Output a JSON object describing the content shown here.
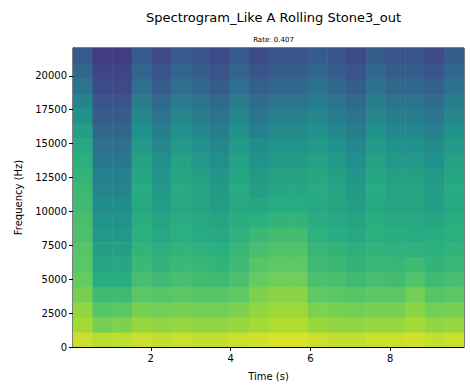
{
  "chart_data": {
    "type": "heatmap",
    "title": "Spectrogram_Like A Rolling Stone3_out",
    "subtitle": "Rate: 0.407",
    "x_label": "Time (s)",
    "y_label": "Frequency (Hz)",
    "xlim": [
      0.05,
      9.85
    ],
    "xticks": [
      2,
      4,
      6,
      8
    ],
    "ylim": [
      0,
      22050
    ],
    "yticks": [
      0,
      2500,
      5000,
      7500,
      10000,
      12500,
      15000,
      17500,
      20000
    ],
    "grid": false,
    "x_bins": [
      0.05,
      0.54,
      1.03,
      1.52,
      2.01,
      2.5,
      2.99,
      3.48,
      3.97,
      4.46,
      4.95,
      5.44,
      5.93,
      6.42,
      6.91,
      7.4,
      7.89,
      8.38,
      8.87,
      9.36,
      9.85
    ],
    "y_bins": [
      0,
      1102.5,
      2205,
      3307.5,
      4410,
      5512.5,
      6615,
      7717.5,
      8820,
      9922.5,
      11025,
      12127.5,
      13230,
      14332.5,
      15435,
      16537.5,
      17640,
      18742.5,
      19845,
      20947.5,
      22050
    ],
    "zlim": [
      0,
      10
    ],
    "cells": [
      [
        9.2,
        8.9,
        9.0,
        9.2,
        9.1,
        9.2,
        9.1,
        9.1,
        9.2,
        9.3,
        9.4,
        9.4,
        9.2,
        9.1,
        9.1,
        9.2,
        9.2,
        9.3,
        9.1,
        9.2
      ],
      [
        8.6,
        7.9,
        8.0,
        8.4,
        8.3,
        8.4,
        8.3,
        8.3,
        8.4,
        8.6,
        8.8,
        8.8,
        8.4,
        8.3,
        8.3,
        8.4,
        8.4,
        8.6,
        8.3,
        8.4
      ],
      [
        8.3,
        7.3,
        7.4,
        7.9,
        7.8,
        7.9,
        7.8,
        7.8,
        8.0,
        8.3,
        8.5,
        8.5,
        8.0,
        7.9,
        7.8,
        7.9,
        7.9,
        8.2,
        7.8,
        7.9
      ],
      [
        7.9,
        6.8,
        6.8,
        7.4,
        7.3,
        7.4,
        7.3,
        7.3,
        7.5,
        8.0,
        8.2,
        8.2,
        7.5,
        7.4,
        7.3,
        7.4,
        7.4,
        7.8,
        7.3,
        7.4
      ],
      [
        7.6,
        6.2,
        6.2,
        7.0,
        6.8,
        7.0,
        6.9,
        6.8,
        7.1,
        7.6,
        7.8,
        7.8,
        7.1,
        7.0,
        6.8,
        7.0,
        6.9,
        7.2,
        6.8,
        7.0
      ],
      [
        7.4,
        5.9,
        5.9,
        6.7,
        6.5,
        6.7,
        6.6,
        6.5,
        6.8,
        7.3,
        7.5,
        7.5,
        6.8,
        6.7,
        6.5,
        6.7,
        6.6,
        6.8,
        6.5,
        6.7
      ],
      [
        7.3,
        5.6,
        5.6,
        6.5,
        6.3,
        6.5,
        6.4,
        6.3,
        6.6,
        7.0,
        7.2,
        7.2,
        6.6,
        6.5,
        6.3,
        6.5,
        6.4,
        6.4,
        6.3,
        6.5
      ],
      [
        7.1,
        5.3,
        5.3,
        6.3,
        6.0,
        6.3,
        6.1,
        6.0,
        6.4,
        6.7,
        6.9,
        6.9,
        6.4,
        6.2,
        6.0,
        6.3,
        6.2,
        6.1,
        6.1,
        6.3
      ],
      [
        7.0,
        5.1,
        5.1,
        6.2,
        5.8,
        6.2,
        6.0,
        5.8,
        6.2,
        6.3,
        6.5,
        6.5,
        6.2,
        6.0,
        5.8,
        6.2,
        6.0,
        6.0,
        5.9,
        6.2
      ],
      [
        6.8,
        4.8,
        4.8,
        6.0,
        5.5,
        6.0,
        5.8,
        5.5,
        6.0,
        5.9,
        6.1,
        6.1,
        6.0,
        5.8,
        5.5,
        6.0,
        5.8,
        5.8,
        5.6,
        6.0
      ],
      [
        6.7,
        4.5,
        4.5,
        6.1,
        5.4,
        6.1,
        5.8,
        5.4,
        6.1,
        5.6,
        5.9,
        5.9,
        6.1,
        5.8,
        5.4,
        6.1,
        5.8,
        5.8,
        5.5,
        6.1
      ],
      [
        6.5,
        4.3,
        4.3,
        5.9,
        5.2,
        5.9,
        5.6,
        5.2,
        5.9,
        5.4,
        5.7,
        5.7,
        5.9,
        5.6,
        5.2,
        5.9,
        5.6,
        5.6,
        5.3,
        5.9
      ],
      [
        6.3,
        4.0,
        4.0,
        5.7,
        4.9,
        5.7,
        5.3,
        4.9,
        5.7,
        5.1,
        5.4,
        5.4,
        5.7,
        5.3,
        4.9,
        5.7,
        5.3,
        5.3,
        5.0,
        5.7
      ],
      [
        6.0,
        3.7,
        3.7,
        5.4,
        4.6,
        5.4,
        5.0,
        4.6,
        5.4,
        4.8,
        5.1,
        5.1,
        5.4,
        5.0,
        4.6,
        5.4,
        5.0,
        5.0,
        4.7,
        5.4
      ],
      [
        5.6,
        3.3,
        3.3,
        5.0,
        4.2,
        5.0,
        4.6,
        4.2,
        5.0,
        4.3,
        4.7,
        4.7,
        5.0,
        4.6,
        4.2,
        5.0,
        4.6,
        4.6,
        4.3,
        5.0
      ],
      [
        5.0,
        2.9,
        2.9,
        4.6,
        3.8,
        4.6,
        4.2,
        3.8,
        4.6,
        3.9,
        4.3,
        4.3,
        4.6,
        4.2,
        3.8,
        4.6,
        4.2,
        4.2,
        3.9,
        4.6
      ],
      [
        4.4,
        2.6,
        2.6,
        4.1,
        3.4,
        4.1,
        3.8,
        3.4,
        4.1,
        3.5,
        3.8,
        3.8,
        4.2,
        3.8,
        3.4,
        4.2,
        3.8,
        3.8,
        3.5,
        4.2
      ],
      [
        3.8,
        2.2,
        2.2,
        3.6,
        2.9,
        3.6,
        3.3,
        2.9,
        3.6,
        3.0,
        3.3,
        3.3,
        3.7,
        3.3,
        2.9,
        3.7,
        3.3,
        3.3,
        3.0,
        3.7
      ],
      [
        3.3,
        2.0,
        2.0,
        3.2,
        2.5,
        3.2,
        2.9,
        2.5,
        3.2,
        2.6,
        2.9,
        2.9,
        3.3,
        2.9,
        2.5,
        3.3,
        2.9,
        2.9,
        2.6,
        3.3
      ],
      [
        2.8,
        1.8,
        1.8,
        2.8,
        2.2,
        2.8,
        2.6,
        2.2,
        2.8,
        2.3,
        2.6,
        2.6,
        2.9,
        2.6,
        2.2,
        2.9,
        2.6,
        2.6,
        2.3,
        2.9
      ]
    ]
  }
}
